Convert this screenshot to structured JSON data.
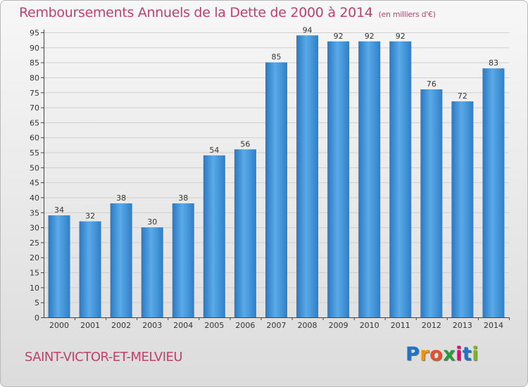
{
  "chart_data": {
    "type": "bar",
    "title": "Remboursements Annuels de la Dette de 2000 à 2014",
    "subtitle": "(en milliers d'€)",
    "categories": [
      "2000",
      "2001",
      "2002",
      "2003",
      "2004",
      "2005",
      "2006",
      "2007",
      "2008",
      "2009",
      "2010",
      "2011",
      "2012",
      "2013",
      "2014"
    ],
    "values": [
      34,
      32,
      38,
      30,
      38,
      54,
      56,
      85,
      94,
      92,
      92,
      92,
      76,
      72,
      83
    ],
    "xlabel": "",
    "ylabel": "",
    "ylim": [
      0,
      95
    ],
    "yticks": [
      0,
      5,
      10,
      15,
      20,
      25,
      30,
      35,
      40,
      45,
      50,
      55,
      60,
      65,
      70,
      75,
      80,
      85,
      90,
      95
    ],
    "grid": true,
    "bar_color": "#3f8fd6"
  },
  "commune": "SAINT-VICTOR-ET-MELVIEU",
  "logo": {
    "letters": [
      "P",
      "r",
      "o",
      "x",
      "i",
      "t",
      "i"
    ],
    "colors": [
      "#1e73c8",
      "#f29400",
      "#e8502a",
      "#2a9a3a",
      "#e6007e",
      "#1e73c8",
      "#7ab51d"
    ]
  },
  "colors": {
    "title": "#c0406b",
    "grid": "#cfcfcf",
    "axis": "#444444"
  }
}
